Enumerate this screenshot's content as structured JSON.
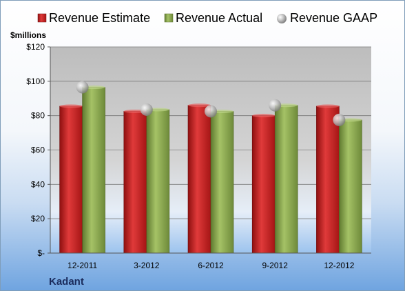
{
  "chart_data": {
    "type": "bar",
    "ylabel": "$millions",
    "company": "Kadant",
    "categories": [
      "12-2011",
      "3-2012",
      "6-2012",
      "9-2012",
      "12-2012"
    ],
    "yticks": [
      "$-",
      "$20",
      "$40",
      "$60",
      "$80",
      "$100",
      "$120"
    ],
    "ylim": [
      0,
      120
    ],
    "grid": true,
    "legend_position": "top",
    "series": [
      {
        "name": "Revenue Estimate",
        "type": "bar",
        "color": "#cc2222",
        "values": [
          85.5,
          82.5,
          86.0,
          80.0,
          85.5
        ]
      },
      {
        "name": "Revenue Actual",
        "type": "bar",
        "color": "#8aa552",
        "values": [
          96.5,
          83.5,
          82.5,
          86.0,
          77.5
        ]
      },
      {
        "name": "Revenue GAAP",
        "type": "scatter",
        "color": "#b8b8b8",
        "values": [
          96.5,
          83.5,
          82.5,
          86.0,
          77.5
        ]
      }
    ]
  }
}
